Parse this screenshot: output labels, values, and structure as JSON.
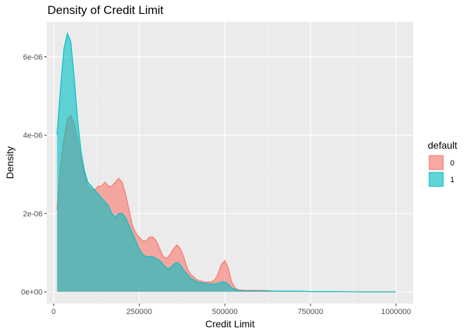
{
  "chart_data": {
    "type": "area",
    "title": "Density of Credit Limit",
    "xlabel": "Credit Limit",
    "ylabel": "Density",
    "xlim": [
      -20000,
      1050000
    ],
    "ylim": [
      -3e-07,
      6.9e-06
    ],
    "x_ticks": [
      0,
      250000,
      500000,
      750000,
      1000000
    ],
    "x_tick_labels": [
      "0",
      "250000",
      "500000",
      "750000",
      "1000000"
    ],
    "y_ticks": [
      0,
      2e-06,
      4e-06,
      6e-06
    ],
    "y_tick_labels": [
      "0e+00",
      "2e-06",
      "4e-06",
      "6e-06"
    ],
    "grid": true,
    "legend": {
      "title": "default",
      "position": "right"
    },
    "series": [
      {
        "name": "0",
        "fill": "#F8766D",
        "x": [
          10000,
          20000,
          30000,
          40000,
          50000,
          60000,
          70000,
          80000,
          90000,
          100000,
          110000,
          120000,
          130000,
          140000,
          150000,
          160000,
          170000,
          180000,
          190000,
          200000,
          210000,
          220000,
          230000,
          240000,
          250000,
          260000,
          270000,
          280000,
          290000,
          300000,
          310000,
          320000,
          330000,
          340000,
          350000,
          360000,
          370000,
          380000,
          390000,
          400000,
          420000,
          440000,
          460000,
          470000,
          480000,
          490000,
          500000,
          510000,
          520000,
          530000,
          540000,
          560000,
          600000,
          650000,
          700000,
          750000,
          800000,
          900000,
          1000000
        ],
        "y": [
          2.1e-06,
          3.2e-06,
          3.9e-06,
          4.4e-06,
          4.5e-06,
          4.3e-06,
          3.9e-06,
          3.4e-06,
          3e-06,
          2.7e-06,
          2.6e-06,
          2.6e-06,
          2.7e-06,
          2.7e-06,
          2.8e-06,
          2.7e-06,
          2.7e-06,
          2.8e-06,
          2.9e-06,
          2.8e-06,
          2.5e-06,
          2.1e-06,
          1.7e-06,
          1.5e-06,
          1.4e-06,
          1.3e-06,
          1.3e-06,
          1.4e-06,
          1.4e-06,
          1.3e-06,
          1.1e-06,
          9e-07,
          8.5e-07,
          9.5e-07,
          1.1e-06,
          1.2e-06,
          1.1e-06,
          9e-07,
          6e-07,
          4.5e-07,
          3e-07,
          2.5e-07,
          2.5e-07,
          3e-07,
          4.5e-07,
          7e-07,
          8e-07,
          6e-07,
          2.5e-07,
          1e-07,
          5e-08,
          4e-08,
          4e-08,
          2e-08,
          2e-08,
          1e-08,
          1e-08,
          0,
          0
        ]
      },
      {
        "name": "1",
        "fill": "#00BFC4",
        "x": [
          10000,
          20000,
          30000,
          40000,
          50000,
          60000,
          70000,
          80000,
          90000,
          100000,
          110000,
          120000,
          130000,
          140000,
          150000,
          160000,
          170000,
          180000,
          190000,
          200000,
          210000,
          220000,
          230000,
          240000,
          250000,
          260000,
          270000,
          280000,
          290000,
          300000,
          310000,
          320000,
          330000,
          340000,
          350000,
          360000,
          370000,
          380000,
          390000,
          400000,
          420000,
          440000,
          460000,
          470000,
          480000,
          490000,
          500000,
          510000,
          520000,
          540000,
          560000,
          600000,
          650000,
          700000,
          750000,
          800000,
          900000,
          1000000
        ],
        "y": [
          4e-06,
          5.2e-06,
          6.2e-06,
          6.6e-06,
          6.4e-06,
          5.5e-06,
          4.4e-06,
          3.6e-06,
          3.1e-06,
          2.8e-06,
          2.7e-06,
          2.6e-06,
          2.5e-06,
          2.4e-06,
          2.3e-06,
          2.2e-06,
          2e-06,
          1.9e-06,
          2e-06,
          2e-06,
          1.9e-06,
          1.7e-06,
          1.5e-06,
          1.3e-06,
          1.1e-06,
          9.5e-07,
          9e-07,
          9e-07,
          9e-07,
          8.5e-07,
          8e-07,
          7e-07,
          6e-07,
          6e-07,
          7e-07,
          7.5e-07,
          7e-07,
          5.5e-07,
          4.5e-07,
          3.5e-07,
          2.5e-07,
          2.2e-07,
          2e-07,
          2e-07,
          2.2e-07,
          2.5e-07,
          2.5e-07,
          2e-07,
          1e-07,
          3e-08,
          2e-08,
          2e-08,
          2e-08,
          2e-08,
          1e-08,
          1e-08,
          0,
          0
        ]
      }
    ]
  }
}
